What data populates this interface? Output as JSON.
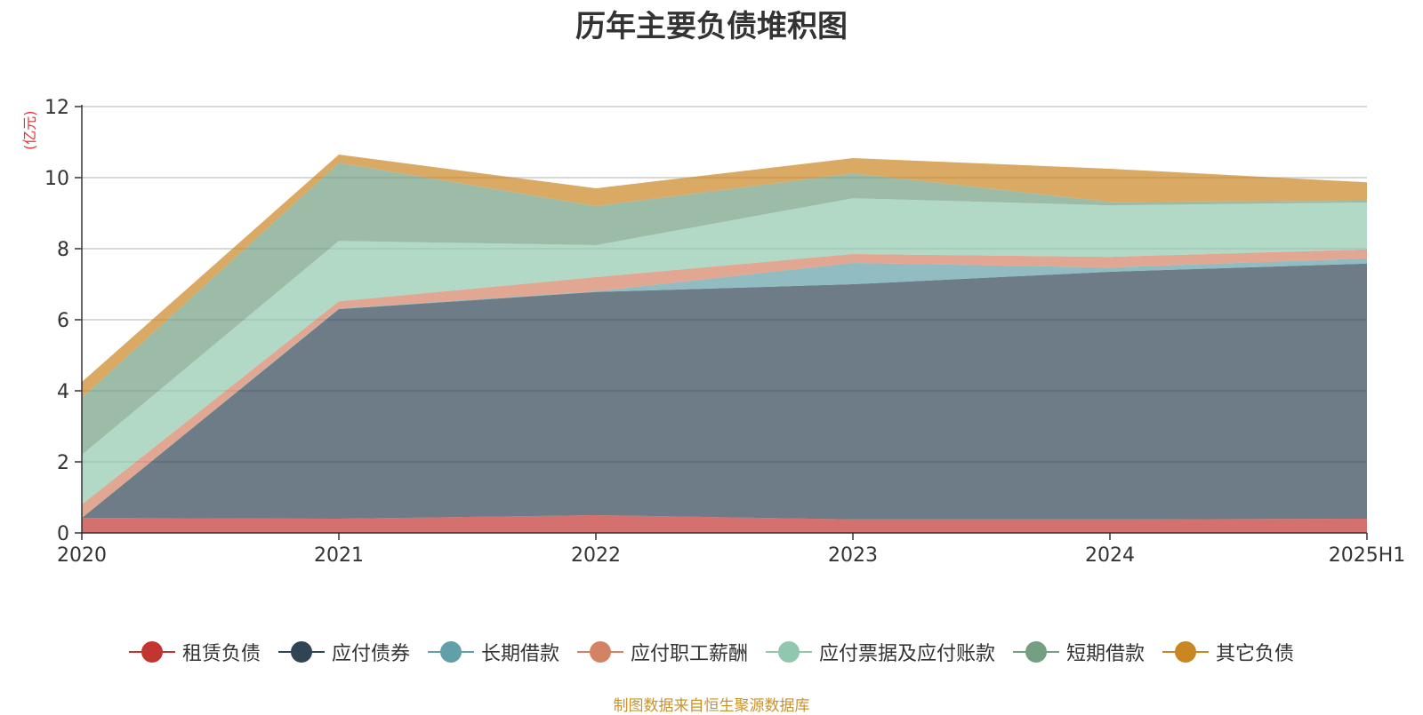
{
  "chart_data": {
    "type": "area",
    "stacked": true,
    "title": "历年主要负债堆积图",
    "unit": "(亿元)",
    "categories": [
      "2020",
      "2021",
      "2022",
      "2023",
      "2024",
      "2025H1"
    ],
    "ylim": [
      0,
      12
    ],
    "yticks": [
      "0",
      "2",
      "4",
      "6",
      "8",
      "10",
      "12"
    ],
    "grid": true,
    "legend_position": "bottom",
    "series": [
      {
        "name": "租赁负债",
        "color": "#c23531",
        "values": [
          0.42,
          0.4,
          0.5,
          0.38,
          0.38,
          0.4
        ]
      },
      {
        "name": "应付债券",
        "color": "#2f4554",
        "values": [
          0.0,
          5.9,
          6.28,
          6.62,
          6.97,
          7.18
        ]
      },
      {
        "name": "长期借款",
        "color": "#61a0a8",
        "values": [
          0.0,
          0.02,
          0.02,
          0.6,
          0.12,
          0.15
        ]
      },
      {
        "name": "应付职工薪酬",
        "color": "#d48265",
        "values": [
          0.38,
          0.2,
          0.4,
          0.25,
          0.3,
          0.25
        ]
      },
      {
        "name": "应付票据及应付账款",
        "color": "#91c7ae",
        "values": [
          1.4,
          1.7,
          0.9,
          1.57,
          1.45,
          1.32
        ]
      },
      {
        "name": "短期借款",
        "color": "#749f83",
        "values": [
          1.6,
          2.2,
          1.1,
          0.7,
          0.1,
          0.05
        ]
      },
      {
        "name": "其它负债",
        "color": "#ca8622",
        "values": [
          0.45,
          0.23,
          0.5,
          0.43,
          0.93,
          0.52
        ]
      }
    ]
  },
  "source_note": "制图数据来自恒生聚源数据库"
}
